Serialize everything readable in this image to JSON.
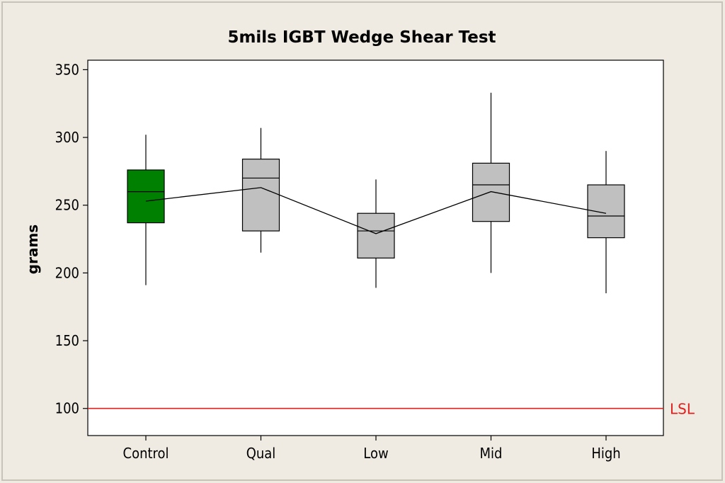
{
  "chart_data": {
    "type": "boxplot",
    "title": "5mils IGBT Wedge Shear Test",
    "xlabel": "",
    "ylabel": "grams",
    "ylim": [
      80,
      357
    ],
    "y_ticks": [
      100,
      150,
      200,
      250,
      300,
      350
    ],
    "y_tick_labels": [
      "100",
      "150",
      "200",
      "250",
      "300",
      "350"
    ],
    "categories": [
      "Control",
      "Qual",
      "Low",
      "Mid",
      "High"
    ],
    "boxes": [
      {
        "label": "Control",
        "min": 191,
        "q1": 237,
        "median": 260,
        "q3": 276,
        "max": 302,
        "mean": 253,
        "color": "#008000"
      },
      {
        "label": "Qual",
        "min": 215,
        "q1": 231,
        "median": 270,
        "q3": 284,
        "max": 307,
        "mean": 263,
        "color": "#c0c0c0"
      },
      {
        "label": "Low",
        "min": 189,
        "q1": 211,
        "median": 231,
        "q3": 244,
        "max": 269,
        "mean": 229,
        "color": "#c0c0c0"
      },
      {
        "label": "Mid",
        "min": 200,
        "q1": 238,
        "median": 265,
        "q3": 281,
        "max": 333,
        "mean": 260,
        "color": "#c0c0c0"
      },
      {
        "label": "High",
        "min": 185,
        "q1": 226,
        "median": 242,
        "q3": 265,
        "max": 290,
        "mean": 244,
        "color": "#c0c0c0"
      }
    ],
    "mean_connect_line": true,
    "reference_lines": [
      {
        "label": "LSL",
        "value": 100,
        "color": "#e0201f"
      }
    ],
    "grid": false,
    "legend": "none"
  }
}
